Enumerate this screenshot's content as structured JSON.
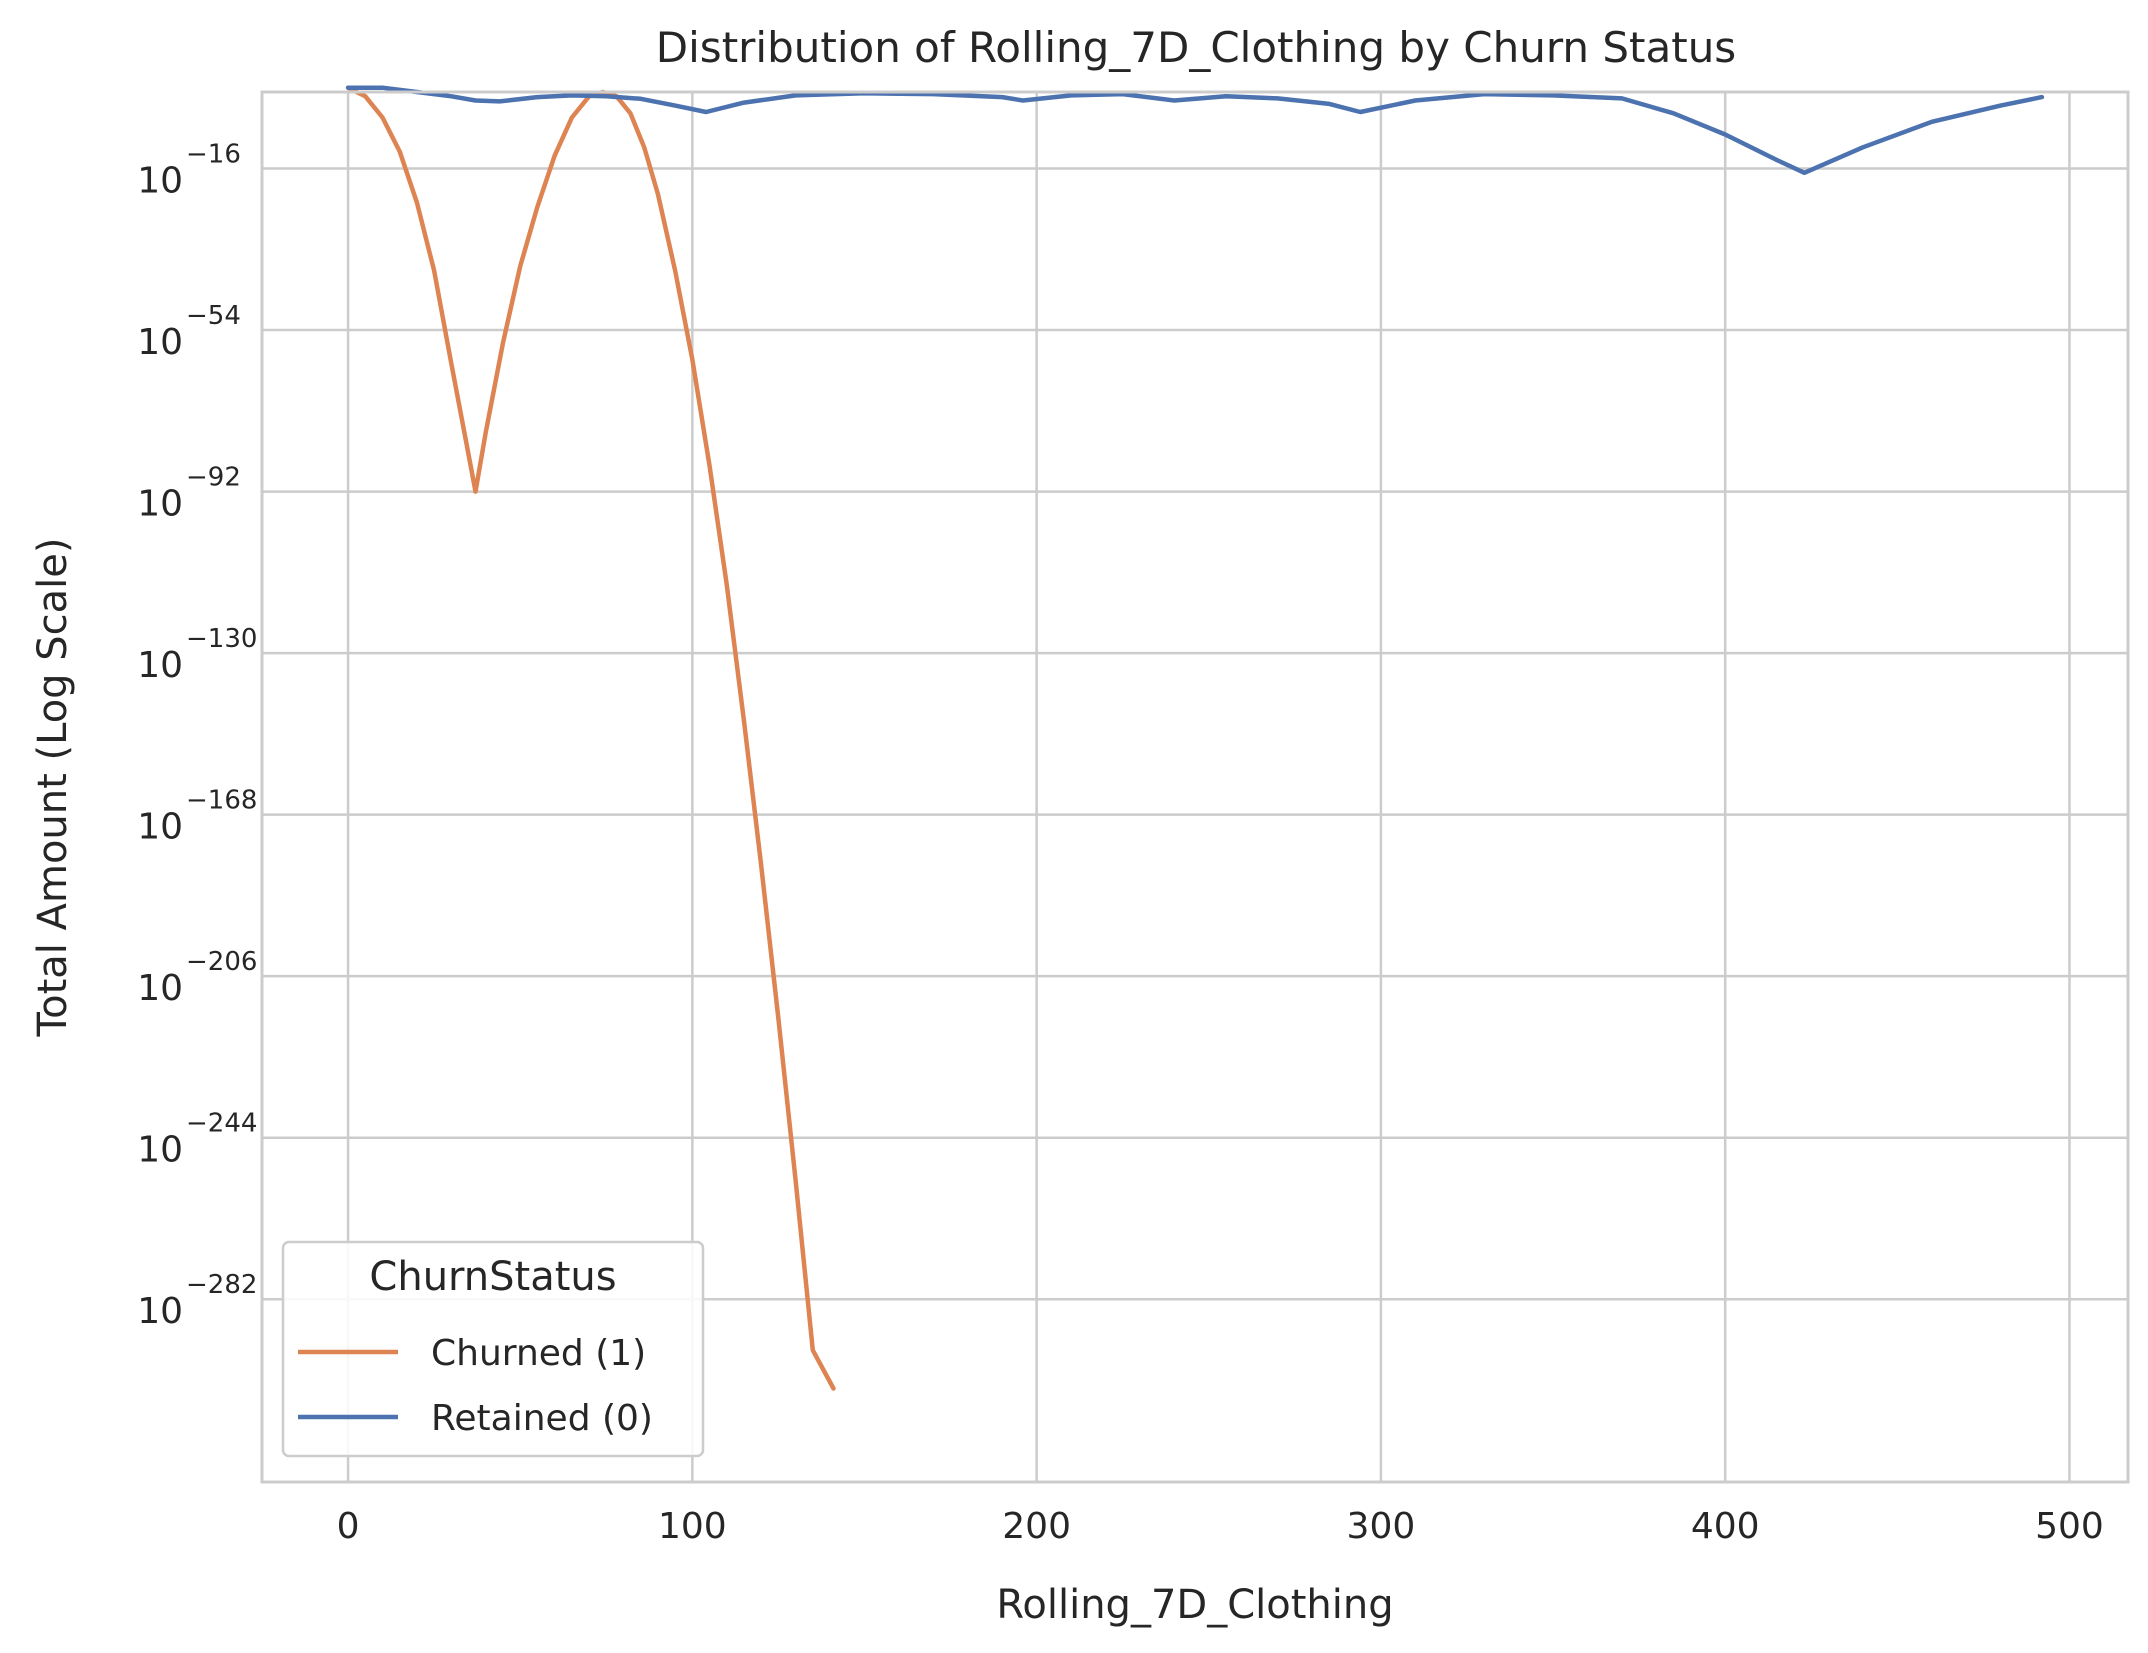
{
  "chart_data": {
    "type": "line",
    "title": "Distribution of Rolling_7D_Clothing by Churn Status",
    "xlabel": "Rolling_7D_Clothing",
    "ylabel": "Total Amount (Log Scale)",
    "x_scale": "linear",
    "y_scale": "log",
    "xlim": [
      -25,
      517
    ],
    "ylim_log10": [
      -325,
      2
    ],
    "x_ticks": [
      0,
      100,
      200,
      300,
      400,
      500
    ],
    "x_tick_labels": [
      "0",
      "100",
      "200",
      "300",
      "400",
      "500"
    ],
    "y_ticks_log10": [
      -16,
      -54,
      -92,
      -130,
      -168,
      -206,
      -244,
      -282
    ],
    "y_tick_bases": [
      "10",
      "10",
      "10",
      "10",
      "10",
      "10",
      "10",
      "10"
    ],
    "y_tick_exponents": [
      "−16",
      "−54",
      "−92",
      "−130",
      "−168",
      "−206",
      "−244",
      "−282"
    ],
    "grid": true,
    "legend": {
      "title": "ChurnStatus",
      "placement": "lower-left",
      "entries": [
        "Churned (1)",
        "Retained (0)"
      ]
    },
    "series": [
      {
        "name": "Churned (1)",
        "color": "#dd8452",
        "x": [
          0,
          5,
          10,
          15,
          20,
          25,
          30,
          34,
          37,
          40,
          45,
          50,
          55,
          60,
          65,
          70,
          74,
          78,
          82,
          86,
          90,
          95,
          100,
          105,
          110,
          115,
          120,
          125,
          130,
          135,
          141
        ],
        "log10_y": [
          3,
          1,
          -4,
          -12,
          -24,
          -40,
          -62,
          -79,
          -92,
          -78,
          -57,
          -39,
          -25,
          -13,
          -4,
          1,
          2,
          1,
          -3,
          -11,
          -22,
          -40,
          -61,
          -86,
          -114,
          -146,
          -180,
          -216,
          -254,
          -294,
          -303
        ]
      },
      {
        "name": "Retained (0)",
        "color": "#4c72b0",
        "x": [
          0,
          10,
          20,
          30,
          37,
          44,
          55,
          65,
          75,
          85,
          95,
          104,
          115,
          130,
          150,
          170,
          190,
          196,
          210,
          225,
          240,
          255,
          270,
          285,
          294,
          310,
          330,
          350,
          370,
          385,
          400,
          415,
          423,
          440,
          460,
          480,
          492
        ],
        "log10_y": [
          3,
          3,
          2,
          1,
          0,
          -0.2,
          0.8,
          1.2,
          1.0,
          0.4,
          -1.2,
          -2.7,
          -0.5,
          1.2,
          1.7,
          1.5,
          0.8,
          0,
          1.2,
          1.5,
          0,
          1.0,
          0.5,
          -0.8,
          -2.7,
          0,
          1.5,
          1.2,
          0.5,
          -3,
          -8,
          -14,
          -17,
          -11,
          -5,
          -1.2,
          0.8
        ]
      }
    ]
  }
}
